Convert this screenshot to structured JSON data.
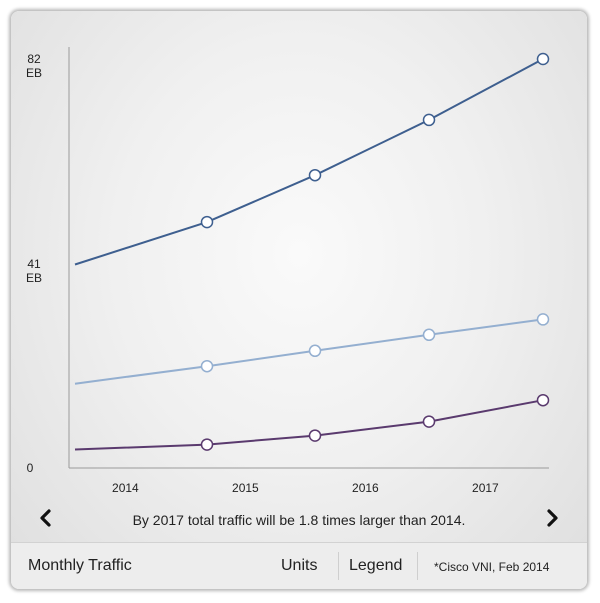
{
  "chart_data": {
    "type": "line",
    "title": "",
    "xlabel": "",
    "ylabel": "",
    "x": [
      2014.7,
      2015.6,
      2016.55,
      2017.5
    ],
    "xlim": [
      2013.55,
      2017.55
    ],
    "ylim": [
      0,
      82
    ],
    "x_ticks": [
      {
        "label": "2014",
        "value": 2014
      },
      {
        "label": "2015",
        "value": 2015
      },
      {
        "label": "2016",
        "value": 2016
      },
      {
        "label": "2017",
        "value": 2017
      }
    ],
    "y_ticks": [
      {
        "value_label": "82",
        "unit": "EB",
        "value": 82
      },
      {
        "value_label": "41",
        "unit": "EB",
        "value": 41
      },
      {
        "value_label": "0",
        "unit": "",
        "value": 0
      }
    ],
    "series": [
      {
        "color": "#3e5f8f",
        "start_value": 40.8,
        "values": [
          49.3,
          58.7,
          69.8,
          82.0
        ]
      },
      {
        "color": "#94afd0",
        "start_value": 16.9,
        "values": [
          20.4,
          23.5,
          26.7,
          29.8
        ]
      },
      {
        "color": "#5a3a6e",
        "start_value": 3.7,
        "values": [
          4.7,
          6.5,
          9.3,
          13.6
        ]
      }
    ],
    "grid": false,
    "legend": "none"
  },
  "caption": "By 2017 total traffic will be 1.8 times larger than 2014.",
  "footer": {
    "title": "Monthly Traffic",
    "units_label": "Units",
    "legend_label": "Legend",
    "source": "*Cisco VNI, Feb 2014"
  },
  "icons": {
    "prev": "chevron-left-icon",
    "next": "chevron-right-icon"
  }
}
